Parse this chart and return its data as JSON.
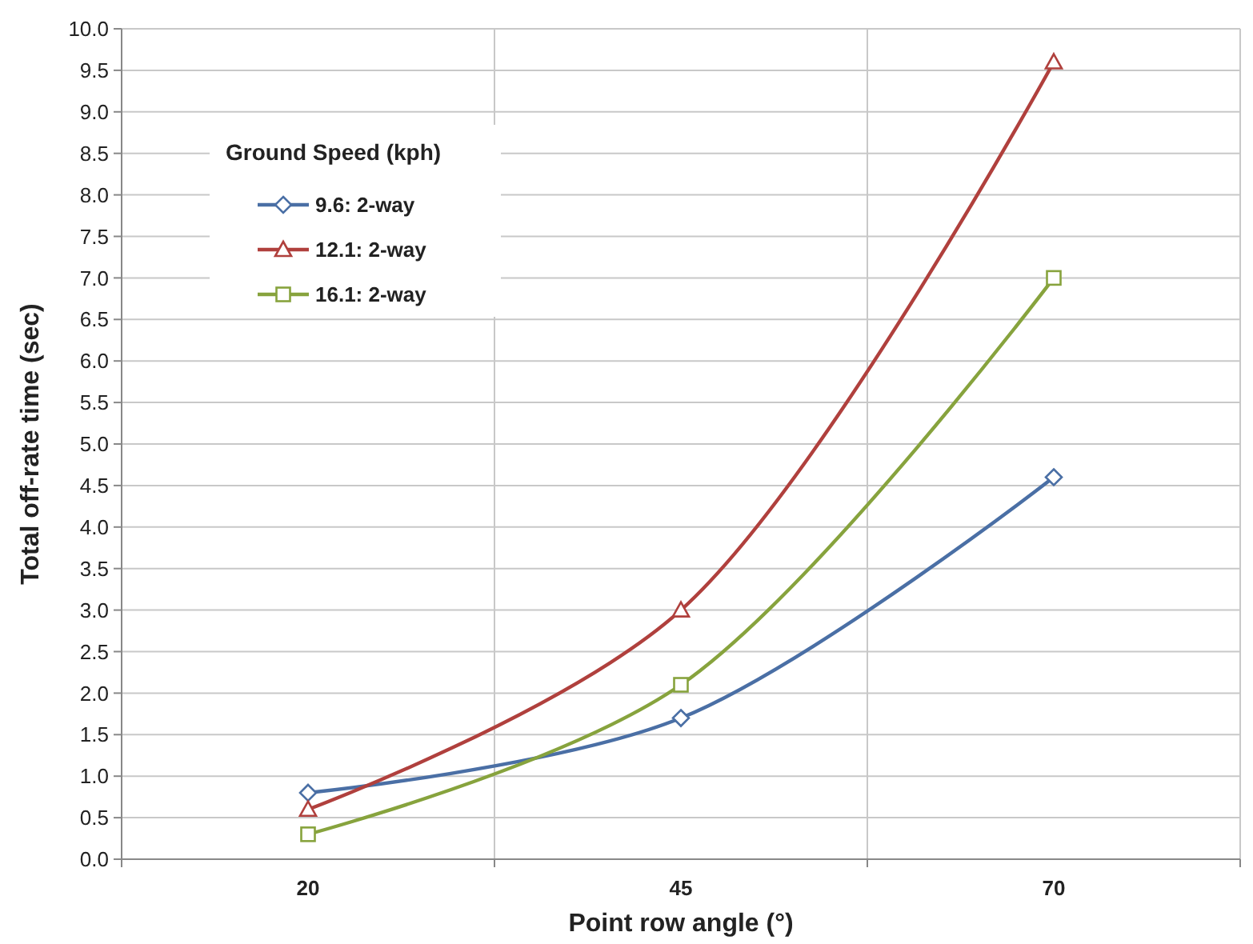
{
  "chart_data": {
    "type": "line",
    "xlabel": "Point row angle (°)",
    "ylabel": "Total off-rate time (sec)",
    "legend_title": "Ground Speed (kph)",
    "categories": [
      "20",
      "45",
      "70"
    ],
    "series": [
      {
        "name": "9.6: 2-way",
        "color": "#4a6fa5",
        "marker": "diamond",
        "values": [
          0.8,
          1.7,
          4.6
        ]
      },
      {
        "name": "12.1: 2-way",
        "color": "#b0403d",
        "marker": "triangle",
        "values": [
          0.6,
          3.0,
          9.6
        ]
      },
      {
        "name": "16.1: 2-way",
        "color": "#87a33d",
        "marker": "square",
        "values": [
          0.3,
          2.1,
          7.0
        ]
      }
    ],
    "ylim": [
      0,
      10
    ],
    "yticks": [
      {
        "value": 0,
        "label": "0.0"
      },
      {
        "value": 0.5,
        "label": "0.5"
      },
      {
        "value": 1,
        "label": "1.0"
      },
      {
        "value": 1.5,
        "label": "1.5"
      },
      {
        "value": 2,
        "label": "2.0"
      },
      {
        "value": 2.5,
        "label": "2.5"
      },
      {
        "value": 3,
        "label": "3.0"
      },
      {
        "value": 3.5,
        "label": "3.5"
      },
      {
        "value": 4,
        "label": "4.0"
      },
      {
        "value": 4.5,
        "label": "4.5"
      },
      {
        "value": 5,
        "label": "5.0"
      },
      {
        "value": 5.5,
        "label": "5.5"
      },
      {
        "value": 6,
        "label": "6.0"
      },
      {
        "value": 6.5,
        "label": "6.5"
      },
      {
        "value": 7,
        "label": "7.0"
      },
      {
        "value": 7.5,
        "label": "7.5"
      },
      {
        "value": 8,
        "label": "8.0"
      },
      {
        "value": 8.5,
        "label": "8.5"
      },
      {
        "value": 9,
        "label": "9.0"
      },
      {
        "value": 9.5,
        "label": "9.5"
      },
      {
        "value": 10,
        "label": "10.0"
      }
    ],
    "grid": true,
    "legend": "top left",
    "line_style": "solid"
  }
}
